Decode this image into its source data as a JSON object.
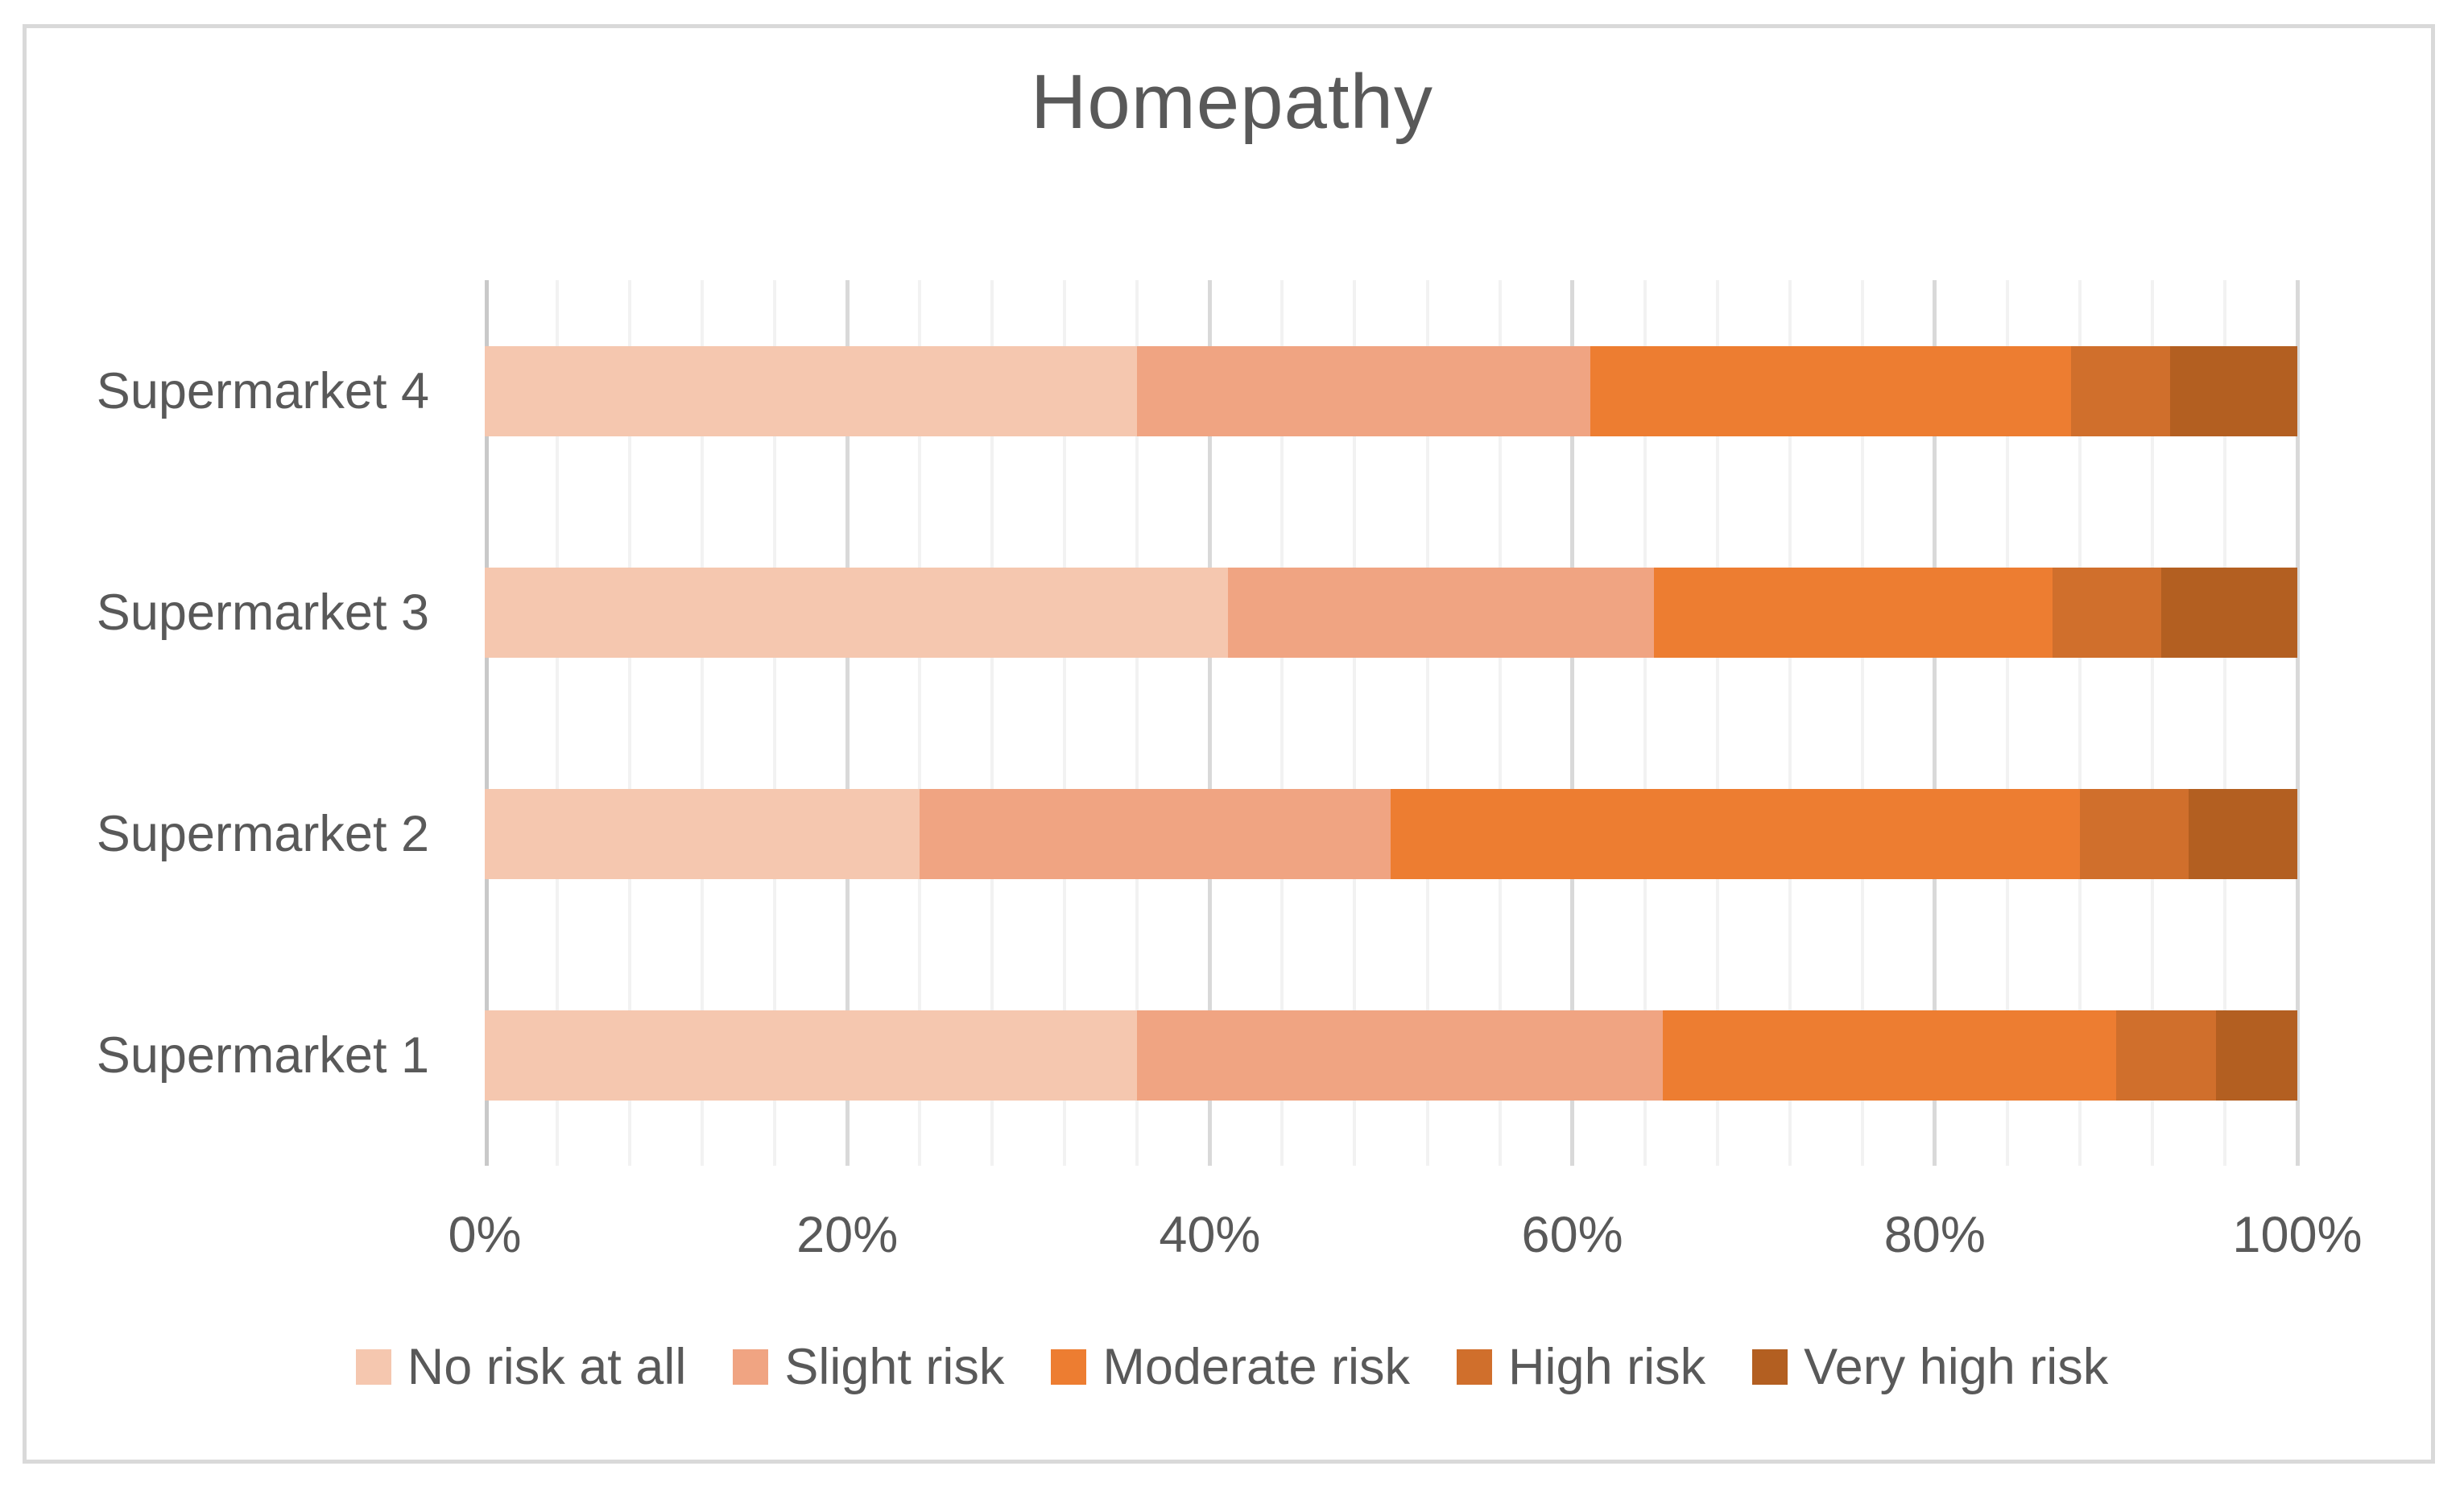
{
  "colors": {
    "text": "#595959",
    "grid_major": "#D9D9D9",
    "grid_minor": "#F2F2F2",
    "axis_line": "#C9C9C9",
    "frame_border": "#D9D9D9",
    "background": "#FFFFFF"
  },
  "chart_data": {
    "type": "bar",
    "stacked": true,
    "orientation": "horizontal",
    "title": "Homepathy",
    "xlabel": "",
    "ylabel": "",
    "xlim": [
      0,
      100
    ],
    "x_ticks": [
      "0%",
      "20%",
      "40%",
      "60%",
      "80%",
      "100%"
    ],
    "minor_grid_step_pct": 4,
    "major_grid_step_pct": 20,
    "grid": "on",
    "legend_position": "bottom",
    "categories": [
      "Supermarket 1",
      "Supermarket 2",
      "Supermarket 3",
      "Supermarket 4"
    ],
    "row_order_top_to_bottom": [
      "Supermarket 4",
      "Supermarket 3",
      "Supermarket 2",
      "Supermarket 1"
    ],
    "series": [
      {
        "name": "No risk at all",
        "color": "#F5C7AF",
        "values": [
          36,
          24,
          41,
          36
        ]
      },
      {
        "name": "Slight risk",
        "color": "#F0A482",
        "values": [
          29,
          26,
          23.5,
          25
        ]
      },
      {
        "name": "Moderate risk",
        "color": "#ED7D31",
        "values": [
          25,
          38,
          22,
          26.5
        ]
      },
      {
        "name": "High risk",
        "color": "#D06F2C",
        "values": [
          5.5,
          6,
          6,
          5.5
        ]
      },
      {
        "name": "Very high risk",
        "color": "#B35F21",
        "values": [
          4.5,
          6,
          7.5,
          7
        ]
      }
    ]
  }
}
